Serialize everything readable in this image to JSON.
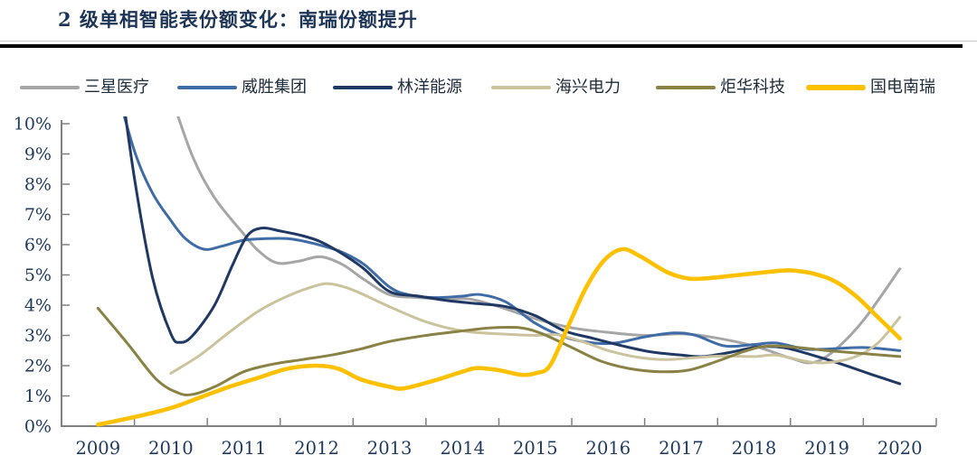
{
  "header": {
    "title": "2 级单相智能表份额变化：南瑞份额提升"
  },
  "colors": {
    "title": "#1C3557",
    "divider": "#000000",
    "axis": "#808080",
    "tick_label": "#1E3A5F"
  },
  "chart_data": {
    "type": "line",
    "title": "2 级单相智能表份额变化：南瑞份额提升",
    "grid": false,
    "legend_position": "top",
    "x_labels": [
      "2009",
      "2010",
      "2011",
      "2012",
      "2013",
      "2014",
      "2015",
      "2016",
      "2017",
      "2018",
      "2019",
      "2020"
    ],
    "y_tick_labels": [
      "0%",
      "1%",
      "2%",
      "3%",
      "4%",
      "5%",
      "6%",
      "7%",
      "8%",
      "9%",
      "10%"
    ],
    "ylim": [
      0,
      10
    ],
    "x_range_years": [
      2009,
      2020
    ],
    "series": [
      {
        "name": "三星医疗",
        "color": "#A6A6A6",
        "line_width": 3,
        "points": [
          [
            2010.02,
            10.8
          ],
          [
            2010.3,
            8.9
          ],
          [
            2010.6,
            7.55
          ],
          [
            2011.0,
            6.35
          ],
          [
            2011.2,
            5.8
          ],
          [
            2011.45,
            5.4
          ],
          [
            2011.75,
            5.45
          ],
          [
            2012.05,
            5.6
          ],
          [
            2012.35,
            5.35
          ],
          [
            2012.65,
            4.85
          ],
          [
            2013.0,
            4.35
          ],
          [
            2013.4,
            4.25
          ],
          [
            2013.8,
            4.2
          ],
          [
            2014.1,
            4.2
          ],
          [
            2014.5,
            3.95
          ],
          [
            2015.0,
            3.55
          ],
          [
            2015.5,
            3.25
          ],
          [
            2016.0,
            3.1
          ],
          [
            2016.5,
            3.0
          ],
          [
            2017.0,
            3.05
          ],
          [
            2017.4,
            2.95
          ],
          [
            2018.0,
            2.65
          ],
          [
            2018.5,
            2.25
          ],
          [
            2018.8,
            2.1
          ],
          [
            2019.1,
            2.5
          ],
          [
            2019.5,
            3.5
          ],
          [
            2020.0,
            5.2
          ]
        ]
      },
      {
        "name": "威胜集团",
        "color": "#3F6CA6",
        "line_width": 3,
        "points": [
          [
            2009.22,
            11.5
          ],
          [
            2009.5,
            9.1
          ],
          [
            2009.75,
            7.7
          ],
          [
            2010.0,
            6.8
          ],
          [
            2010.2,
            6.2
          ],
          [
            2010.45,
            5.85
          ],
          [
            2010.7,
            5.95
          ],
          [
            2011.0,
            6.15
          ],
          [
            2011.3,
            6.2
          ],
          [
            2011.6,
            6.2
          ],
          [
            2011.85,
            6.1
          ],
          [
            2012.1,
            5.95
          ],
          [
            2012.35,
            5.75
          ],
          [
            2012.65,
            5.35
          ],
          [
            2013.0,
            4.6
          ],
          [
            2013.25,
            4.35
          ],
          [
            2013.6,
            4.25
          ],
          [
            2014.0,
            4.3
          ],
          [
            2014.25,
            4.35
          ],
          [
            2014.6,
            4.1
          ],
          [
            2015.0,
            3.4
          ],
          [
            2015.4,
            2.95
          ],
          [
            2015.8,
            2.75
          ],
          [
            2016.1,
            2.75
          ],
          [
            2016.5,
            2.95
          ],
          [
            2016.9,
            3.08
          ],
          [
            2017.2,
            3.0
          ],
          [
            2017.6,
            2.65
          ],
          [
            2018.0,
            2.7
          ],
          [
            2018.3,
            2.75
          ],
          [
            2018.7,
            2.55
          ],
          [
            2019.0,
            2.55
          ],
          [
            2019.5,
            2.6
          ],
          [
            2020.0,
            2.5
          ]
        ]
      },
      {
        "name": "林洋能源",
        "color": "#1F3864",
        "line_width": 3,
        "points": [
          [
            2009.28,
            12.0
          ],
          [
            2009.5,
            8.2
          ],
          [
            2009.75,
            4.9
          ],
          [
            2010.0,
            3.05
          ],
          [
            2010.13,
            2.77
          ],
          [
            2010.3,
            3.0
          ],
          [
            2010.6,
            4.0
          ],
          [
            2010.85,
            5.35
          ],
          [
            2011.05,
            6.3
          ],
          [
            2011.25,
            6.55
          ],
          [
            2011.5,
            6.45
          ],
          [
            2011.8,
            6.3
          ],
          [
            2012.05,
            6.1
          ],
          [
            2012.35,
            5.7
          ],
          [
            2012.65,
            5.2
          ],
          [
            2013.0,
            4.45
          ],
          [
            2013.4,
            4.3
          ],
          [
            2013.8,
            4.15
          ],
          [
            2014.2,
            4.05
          ],
          [
            2014.6,
            3.95
          ],
          [
            2015.0,
            3.65
          ],
          [
            2015.4,
            3.15
          ],
          [
            2015.8,
            2.9
          ],
          [
            2016.2,
            2.65
          ],
          [
            2016.6,
            2.45
          ],
          [
            2017.0,
            2.35
          ],
          [
            2017.3,
            2.3
          ],
          [
            2017.7,
            2.45
          ],
          [
            2018.05,
            2.62
          ],
          [
            2018.4,
            2.6
          ],
          [
            2018.8,
            2.35
          ],
          [
            2019.2,
            2.05
          ],
          [
            2019.6,
            1.72
          ],
          [
            2020.0,
            1.4
          ]
        ]
      },
      {
        "name": "海兴电力",
        "color": "#CBC39D",
        "line_width": 3,
        "points": [
          [
            2010.0,
            1.75
          ],
          [
            2010.4,
            2.35
          ],
          [
            2010.8,
            3.1
          ],
          [
            2011.2,
            3.8
          ],
          [
            2011.6,
            4.3
          ],
          [
            2012.0,
            4.65
          ],
          [
            2012.2,
            4.7
          ],
          [
            2012.5,
            4.5
          ],
          [
            2013.0,
            3.95
          ],
          [
            2013.5,
            3.45
          ],
          [
            2014.0,
            3.15
          ],
          [
            2014.5,
            3.05
          ],
          [
            2015.0,
            3.0
          ],
          [
            2015.3,
            3.02
          ],
          [
            2015.7,
            2.75
          ],
          [
            2016.0,
            2.5
          ],
          [
            2016.4,
            2.28
          ],
          [
            2016.8,
            2.2
          ],
          [
            2017.2,
            2.27
          ],
          [
            2017.6,
            2.32
          ],
          [
            2018.0,
            2.3
          ],
          [
            2018.3,
            2.35
          ],
          [
            2018.7,
            2.15
          ],
          [
            2019.0,
            2.1
          ],
          [
            2019.4,
            2.3
          ],
          [
            2019.7,
            2.75
          ],
          [
            2020.0,
            3.6
          ]
        ]
      },
      {
        "name": "炬华科技",
        "color": "#8A8144",
        "line_width": 3,
        "points": [
          [
            2009.0,
            3.9
          ],
          [
            2009.4,
            2.75
          ],
          [
            2009.8,
            1.55
          ],
          [
            2010.1,
            1.1
          ],
          [
            2010.3,
            1.05
          ],
          [
            2010.6,
            1.3
          ],
          [
            2011.0,
            1.8
          ],
          [
            2011.4,
            2.05
          ],
          [
            2011.8,
            2.2
          ],
          [
            2012.2,
            2.35
          ],
          [
            2012.6,
            2.55
          ],
          [
            2013.0,
            2.8
          ],
          [
            2013.5,
            3.0
          ],
          [
            2014.0,
            3.15
          ],
          [
            2014.4,
            3.25
          ],
          [
            2014.8,
            3.25
          ],
          [
            2015.1,
            3.05
          ],
          [
            2015.5,
            2.6
          ],
          [
            2015.9,
            2.15
          ],
          [
            2016.3,
            1.9
          ],
          [
            2016.7,
            1.8
          ],
          [
            2017.1,
            1.85
          ],
          [
            2017.5,
            2.15
          ],
          [
            2017.9,
            2.5
          ],
          [
            2018.2,
            2.65
          ],
          [
            2018.6,
            2.6
          ],
          [
            2019.0,
            2.5
          ],
          [
            2019.5,
            2.4
          ],
          [
            2020.0,
            2.3
          ]
        ]
      },
      {
        "name": "国电南瑞",
        "color": "#FFC000",
        "line_width": 4.6,
        "points": [
          [
            2009.0,
            0.05
          ],
          [
            2009.5,
            0.3
          ],
          [
            2010.0,
            0.6
          ],
          [
            2010.4,
            0.95
          ],
          [
            2010.8,
            1.3
          ],
          [
            2011.2,
            1.6
          ],
          [
            2011.6,
            1.9
          ],
          [
            2012.0,
            2.0
          ],
          [
            2012.3,
            1.9
          ],
          [
            2012.6,
            1.55
          ],
          [
            2013.0,
            1.3
          ],
          [
            2013.2,
            1.25
          ],
          [
            2013.6,
            1.5
          ],
          [
            2014.0,
            1.8
          ],
          [
            2014.2,
            1.92
          ],
          [
            2014.5,
            1.85
          ],
          [
            2014.8,
            1.7
          ],
          [
            2015.0,
            1.75
          ],
          [
            2015.2,
            2.0
          ],
          [
            2015.45,
            3.3
          ],
          [
            2015.7,
            4.6
          ],
          [
            2015.95,
            5.5
          ],
          [
            2016.2,
            5.85
          ],
          [
            2016.45,
            5.6
          ],
          [
            2016.8,
            5.1
          ],
          [
            2017.1,
            4.88
          ],
          [
            2017.4,
            4.9
          ],
          [
            2017.8,
            5.0
          ],
          [
            2018.2,
            5.1
          ],
          [
            2018.5,
            5.15
          ],
          [
            2018.8,
            5.05
          ],
          [
            2019.1,
            4.8
          ],
          [
            2019.4,
            4.3
          ],
          [
            2019.7,
            3.6
          ],
          [
            2020.0,
            2.9
          ]
        ]
      }
    ]
  }
}
